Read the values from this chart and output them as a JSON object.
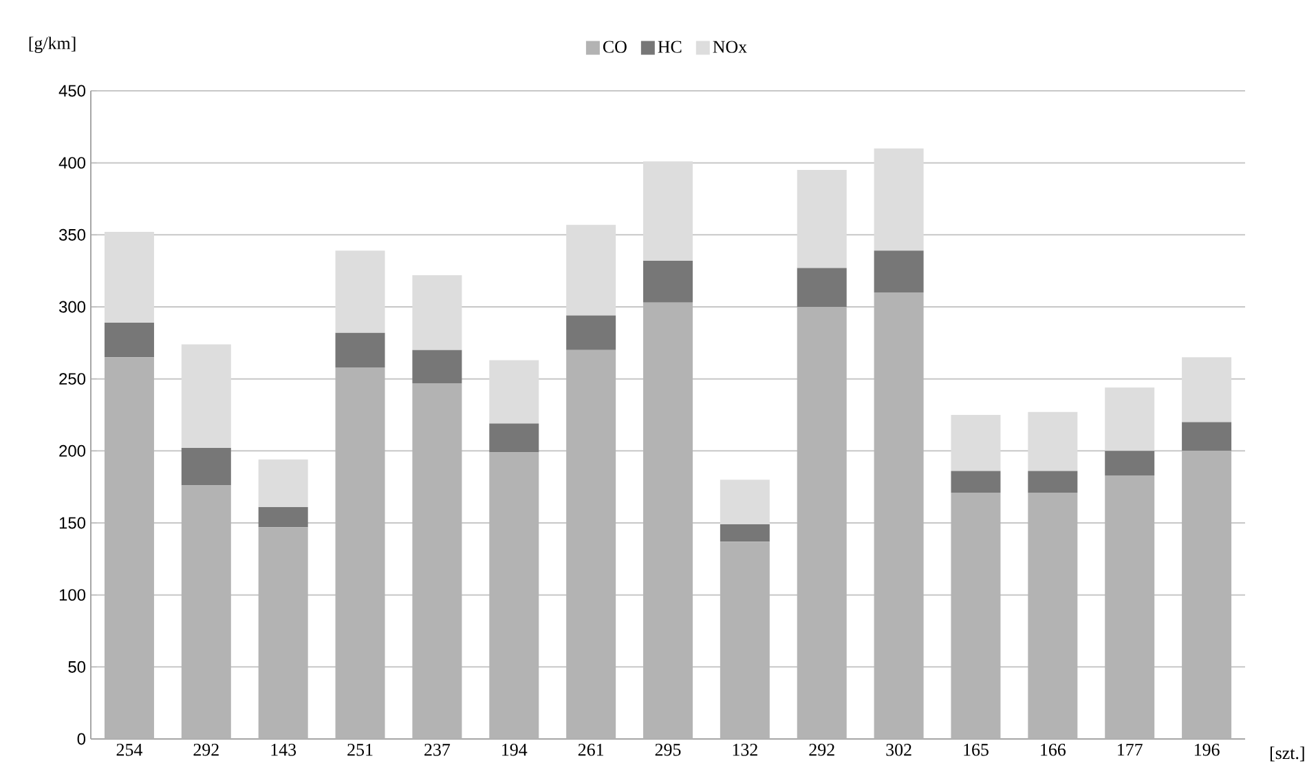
{
  "chart_data": {
    "type": "bar",
    "stacked": true,
    "xlabel": "[szt.]",
    "ylabel": "[g/km]",
    "categories": [
      "254",
      "292",
      "143",
      "251",
      "237",
      "194",
      "261",
      "295",
      "132",
      "292",
      "302",
      "165",
      "166",
      "177",
      "196"
    ],
    "series": [
      {
        "name": "CO",
        "color": "#b3b3b3",
        "values": [
          265,
          176,
          147,
          258,
          247,
          199,
          270,
          303,
          137,
          300,
          310,
          171,
          171,
          183,
          200
        ]
      },
      {
        "name": "HC",
        "color": "#777777",
        "values": [
          24,
          26,
          14,
          24,
          23,
          20,
          24,
          29,
          12,
          27,
          29,
          15,
          15,
          17,
          20
        ]
      },
      {
        "name": "NOx",
        "color": "#dddddd",
        "values": [
          63,
          72,
          33,
          57,
          52,
          44,
          63,
          69,
          31,
          68,
          71,
          39,
          41,
          44,
          45
        ]
      }
    ],
    "ylim": [
      0,
      450
    ],
    "yticks": [
      0,
      50,
      100,
      150,
      200,
      250,
      300,
      350,
      400,
      450
    ],
    "grid": "y",
    "legend": "top"
  }
}
